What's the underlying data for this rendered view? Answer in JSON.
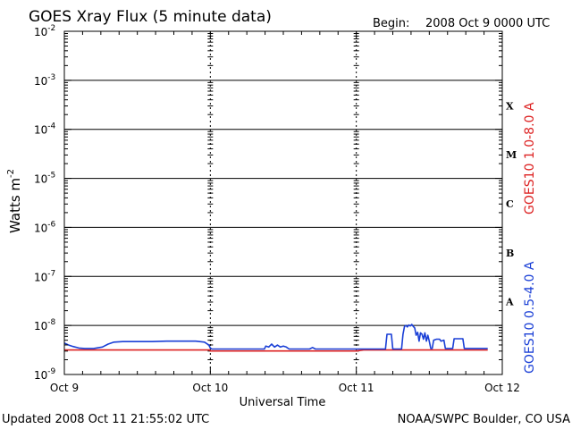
{
  "header": {
    "title": "GOES Xray Flux (5 minute data)",
    "begin_label": "Begin:",
    "begin_value": "2008 Oct 9 0000 UTC"
  },
  "footer": {
    "updated": "Updated 2008 Oct 11 21:55:02 UTC",
    "credit": "NOAA/SWPC Boulder, CO USA"
  },
  "chart_data": {
    "type": "line",
    "title": "GOES Xray Flux (5 minute data)",
    "xlabel": "Universal Time",
    "ylabel_text": "Watts m",
    "ylabel_sup": "-2",
    "y_scale": "log",
    "ylim_exp": [
      -9,
      -2
    ],
    "xlim_days": [
      0,
      3
    ],
    "x_ticks": [
      {
        "day": 0,
        "label": "Oct 9"
      },
      {
        "day": 1,
        "label": "Oct 10"
      },
      {
        "day": 2,
        "label": "Oct 11"
      },
      {
        "day": 3,
        "label": "Oct 12"
      }
    ],
    "y_ticks": [
      {
        "exp": -9,
        "base": "10",
        "sup": "-9"
      },
      {
        "exp": -8,
        "base": "10",
        "sup": "-8"
      },
      {
        "exp": -7,
        "base": "10",
        "sup": "-7"
      },
      {
        "exp": -6,
        "base": "10",
        "sup": "-6"
      },
      {
        "exp": -5,
        "base": "10",
        "sup": "-5"
      },
      {
        "exp": -4,
        "base": "10",
        "sup": "-4"
      },
      {
        "exp": -3,
        "base": "10",
        "sup": "-3"
      },
      {
        "exp": -2,
        "base": "10",
        "sup": "-2"
      }
    ],
    "flare_classes": [
      {
        "label": "A",
        "exp": -7.5
      },
      {
        "label": "B",
        "exp": -6.5
      },
      {
        "label": "C",
        "exp": -5.5
      },
      {
        "label": "M",
        "exp": -4.5
      },
      {
        "label": "X",
        "exp": -3.5
      }
    ],
    "gridlines_exp": [
      -8,
      -7,
      -6,
      -5,
      -4,
      -3
    ],
    "series": [
      {
        "name": "GOES10 1.0-8.0 A",
        "color": "#dd2222",
        "points": [
          [
            0.0,
            -8.5
          ],
          [
            0.995,
            -8.5
          ],
          [
            1.0,
            -8.52
          ],
          [
            2.0,
            -8.52
          ],
          [
            2.05,
            -8.5
          ],
          [
            2.9,
            -8.5
          ]
        ]
      },
      {
        "name": "GOES10 0.5-4.0 A",
        "color": "#1a3fd6",
        "points": [
          [
            0.0,
            -8.36
          ],
          [
            0.03,
            -8.4
          ],
          [
            0.06,
            -8.43
          ],
          [
            0.1,
            -8.46
          ],
          [
            0.14,
            -8.47
          ],
          [
            0.2,
            -8.47
          ],
          [
            0.26,
            -8.44
          ],
          [
            0.3,
            -8.38
          ],
          [
            0.34,
            -8.34
          ],
          [
            0.4,
            -8.33
          ],
          [
            0.5,
            -8.33
          ],
          [
            0.6,
            -8.33
          ],
          [
            0.7,
            -8.32
          ],
          [
            0.8,
            -8.32
          ],
          [
            0.9,
            -8.32
          ],
          [
            0.96,
            -8.34
          ],
          [
            0.99,
            -8.4
          ],
          [
            1.0,
            -8.46
          ],
          [
            1.01,
            -8.48
          ],
          [
            1.2,
            -8.48
          ],
          [
            1.37,
            -8.48
          ],
          [
            1.38,
            -8.42
          ],
          [
            1.4,
            -8.44
          ],
          [
            1.42,
            -8.38
          ],
          [
            1.44,
            -8.44
          ],
          [
            1.46,
            -8.4
          ],
          [
            1.48,
            -8.44
          ],
          [
            1.5,
            -8.42
          ],
          [
            1.52,
            -8.44
          ],
          [
            1.54,
            -8.48
          ],
          [
            1.55,
            -8.48
          ],
          [
            1.56,
            -8.48
          ],
          [
            1.6,
            -8.48
          ],
          [
            1.68,
            -8.48
          ],
          [
            1.7,
            -8.45
          ],
          [
            1.72,
            -8.48
          ],
          [
            1.9,
            -8.48
          ],
          [
            2.0,
            -8.48
          ],
          [
            2.1,
            -8.48
          ],
          [
            2.2,
            -8.48
          ],
          [
            2.21,
            -8.18
          ],
          [
            2.24,
            -8.18
          ],
          [
            2.25,
            -8.48
          ],
          [
            2.31,
            -8.48
          ],
          [
            2.32,
            -8.18
          ],
          [
            2.33,
            -8.02
          ],
          [
            2.34,
            -8.0
          ],
          [
            2.35,
            -8.03
          ],
          [
            2.36,
            -7.99
          ],
          [
            2.37,
            -8.01
          ],
          [
            2.38,
            -7.98
          ],
          [
            2.39,
            -8.02
          ],
          [
            2.4,
            -8.05
          ],
          [
            2.41,
            -8.2
          ],
          [
            2.42,
            -8.14
          ],
          [
            2.43,
            -8.32
          ],
          [
            2.44,
            -8.15
          ],
          [
            2.45,
            -8.18
          ],
          [
            2.46,
            -8.28
          ],
          [
            2.47,
            -8.15
          ],
          [
            2.48,
            -8.32
          ],
          [
            2.49,
            -8.2
          ],
          [
            2.5,
            -8.32
          ],
          [
            2.51,
            -8.47
          ],
          [
            2.52,
            -8.47
          ],
          [
            2.53,
            -8.3
          ],
          [
            2.55,
            -8.28
          ],
          [
            2.57,
            -8.28
          ],
          [
            2.58,
            -8.32
          ],
          [
            2.6,
            -8.3
          ],
          [
            2.61,
            -8.47
          ],
          [
            2.66,
            -8.47
          ],
          [
            2.67,
            -8.27
          ],
          [
            2.7,
            -8.27
          ],
          [
            2.73,
            -8.27
          ],
          [
            2.74,
            -8.47
          ],
          [
            2.8,
            -8.47
          ],
          [
            2.9,
            -8.47
          ]
        ]
      }
    ]
  }
}
